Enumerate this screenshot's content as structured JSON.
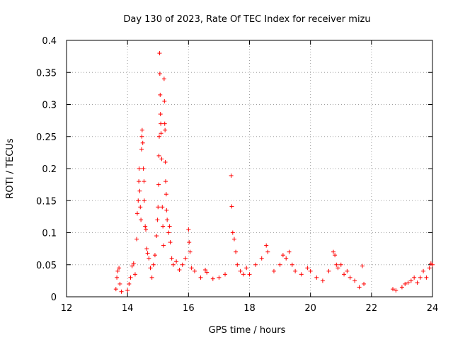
{
  "chart_data": {
    "type": "scatter",
    "title": "Day 130 of 2023, Rate Of TEC Index for receiver mizu",
    "xlabel": "GPS time / hours",
    "ylabel": "ROTI / TECUs",
    "xlim": [
      12,
      24
    ],
    "ylim": [
      0,
      0.4
    ],
    "xticks": [
      "12",
      "14",
      "16",
      "18",
      "20",
      "22",
      "24"
    ],
    "yticks": [
      "0",
      "0.05",
      "0.1",
      "0.15",
      "0.2",
      "0.25",
      "0.3",
      "0.35",
      "0.4"
    ],
    "grid": true,
    "marker": "+",
    "color": "#ff0000",
    "series": [
      {
        "name": "ROTI",
        "points": [
          [
            13.62,
            0.012
          ],
          [
            13.65,
            0.03
          ],
          [
            13.68,
            0.04
          ],
          [
            13.72,
            0.045
          ],
          [
            13.75,
            0.02
          ],
          [
            13.8,
            0.008
          ],
          [
            14.0,
            0.01
          ],
          [
            14.05,
            0.02
          ],
          [
            14.1,
            0.03
          ],
          [
            14.15,
            0.048
          ],
          [
            14.2,
            0.052
          ],
          [
            14.25,
            0.035
          ],
          [
            14.3,
            0.09
          ],
          [
            14.32,
            0.13
          ],
          [
            14.35,
            0.15
          ],
          [
            14.37,
            0.18
          ],
          [
            14.38,
            0.2
          ],
          [
            14.4,
            0.165
          ],
          [
            14.42,
            0.14
          ],
          [
            14.44,
            0.12
          ],
          [
            14.46,
            0.23
          ],
          [
            14.47,
            0.25
          ],
          [
            14.48,
            0.26
          ],
          [
            14.5,
            0.24
          ],
          [
            14.52,
            0.2
          ],
          [
            14.54,
            0.18
          ],
          [
            14.55,
            0.15
          ],
          [
            14.58,
            0.11
          ],
          [
            14.6,
            0.105
          ],
          [
            14.63,
            0.075
          ],
          [
            14.66,
            0.068
          ],
          [
            14.7,
            0.06
          ],
          [
            14.75,
            0.045
          ],
          [
            14.8,
            0.03
          ],
          [
            14.85,
            0.05
          ],
          [
            14.9,
            0.065
          ],
          [
            14.95,
            0.095
          ],
          [
            14.98,
            0.12
          ],
          [
            15.0,
            0.14
          ],
          [
            15.02,
            0.175
          ],
          [
            15.03,
            0.22
          ],
          [
            15.04,
            0.25
          ],
          [
            15.05,
            0.38
          ],
          [
            15.06,
            0.348
          ],
          [
            15.07,
            0.315
          ],
          [
            15.08,
            0.285
          ],
          [
            15.09,
            0.27
          ],
          [
            15.1,
            0.255
          ],
          [
            15.12,
            0.215
          ],
          [
            15.14,
            0.14
          ],
          [
            15.16,
            0.11
          ],
          [
            15.18,
            0.08
          ],
          [
            15.2,
            0.34
          ],
          [
            15.21,
            0.305
          ],
          [
            15.22,
            0.27
          ],
          [
            15.23,
            0.26
          ],
          [
            15.24,
            0.21
          ],
          [
            15.25,
            0.18
          ],
          [
            15.27,
            0.16
          ],
          [
            15.28,
            0.135
          ],
          [
            15.3,
            0.12
          ],
          [
            15.35,
            0.1
          ],
          [
            15.38,
            0.11
          ],
          [
            15.4,
            0.085
          ],
          [
            15.45,
            0.06
          ],
          [
            15.5,
            0.05
          ],
          [
            15.6,
            0.055
          ],
          [
            15.7,
            0.042
          ],
          [
            15.8,
            0.05
          ],
          [
            15.9,
            0.06
          ],
          [
            16.0,
            0.105
          ],
          [
            16.02,
            0.085
          ],
          [
            16.05,
            0.07
          ],
          [
            16.1,
            0.045
          ],
          [
            16.2,
            0.04
          ],
          [
            16.4,
            0.03
          ],
          [
            16.55,
            0.042
          ],
          [
            16.6,
            0.038
          ],
          [
            16.8,
            0.028
          ],
          [
            17.0,
            0.03
          ],
          [
            17.2,
            0.035
          ],
          [
            17.4,
            0.189
          ],
          [
            17.42,
            0.141
          ],
          [
            17.45,
            0.1
          ],
          [
            17.5,
            0.09
          ],
          [
            17.55,
            0.07
          ],
          [
            17.6,
            0.05
          ],
          [
            17.7,
            0.04
          ],
          [
            17.8,
            0.035
          ],
          [
            17.9,
            0.045
          ],
          [
            18.0,
            0.035
          ],
          [
            18.2,
            0.05
          ],
          [
            18.4,
            0.06
          ],
          [
            18.55,
            0.08
          ],
          [
            18.6,
            0.07
          ],
          [
            18.8,
            0.04
          ],
          [
            19.0,
            0.05
          ],
          [
            19.1,
            0.065
          ],
          [
            19.2,
            0.06
          ],
          [
            19.3,
            0.07
          ],
          [
            19.4,
            0.05
          ],
          [
            19.5,
            0.04
          ],
          [
            19.7,
            0.035
          ],
          [
            19.9,
            0.045
          ],
          [
            20.0,
            0.04
          ],
          [
            20.2,
            0.03
          ],
          [
            20.4,
            0.025
          ],
          [
            20.6,
            0.04
          ],
          [
            20.75,
            0.07
          ],
          [
            20.8,
            0.065
          ],
          [
            20.85,
            0.05
          ],
          [
            20.9,
            0.045
          ],
          [
            21.0,
            0.05
          ],
          [
            21.1,
            0.035
          ],
          [
            21.2,
            0.04
          ],
          [
            21.3,
            0.03
          ],
          [
            21.45,
            0.025
          ],
          [
            21.6,
            0.015
          ],
          [
            21.7,
            0.048
          ],
          [
            21.75,
            0.02
          ],
          [
            22.7,
            0.012
          ],
          [
            22.8,
            0.01
          ],
          [
            23.0,
            0.015
          ],
          [
            23.1,
            0.02
          ],
          [
            23.2,
            0.022
          ],
          [
            23.3,
            0.025
          ],
          [
            23.4,
            0.03
          ],
          [
            23.5,
            0.022
          ],
          [
            23.6,
            0.03
          ],
          [
            23.7,
            0.04
          ],
          [
            23.8,
            0.03
          ],
          [
            23.9,
            0.045
          ],
          [
            23.95,
            0.052
          ],
          [
            24.0,
            0.05
          ]
        ]
      }
    ]
  }
}
